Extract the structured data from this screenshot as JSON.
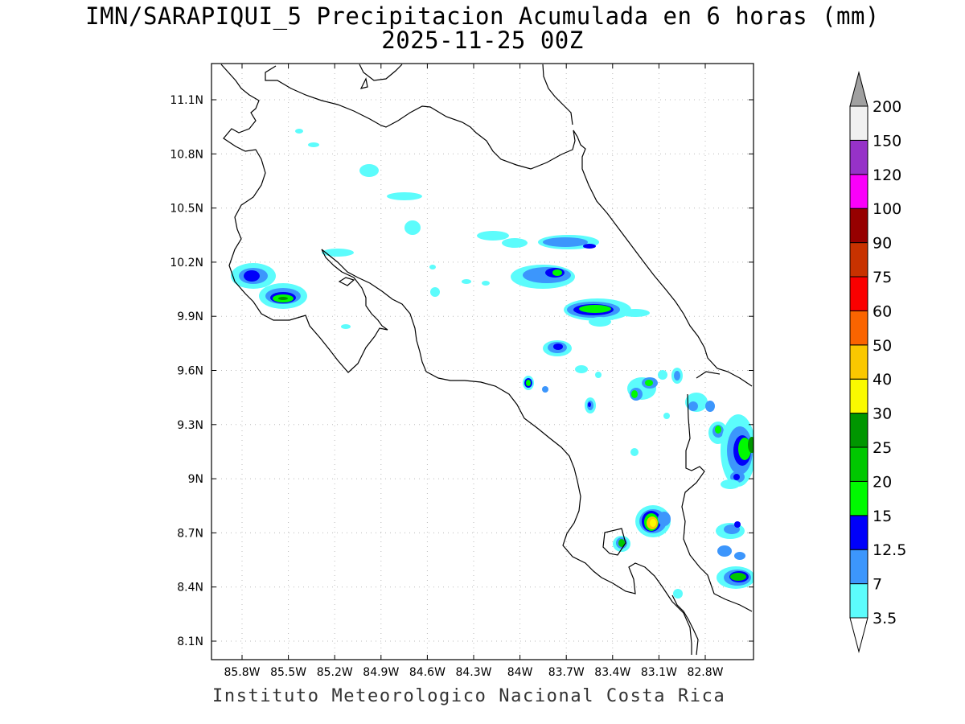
{
  "title": {
    "line1": "IMN/SARAPIQUI_5 Precipitacion Acumulada en 6 horas (mm)",
    "line2": "2025-11-25 00Z"
  },
  "footer": "Instituto Meteorologico Nacional Costa Rica",
  "axes": {
    "x_ticks": [
      "85.8W",
      "85.5W",
      "85.2W",
      "84.9W",
      "84.6W",
      "84.3W",
      "84W",
      "83.7W",
      "83.4W",
      "83.1W",
      "82.8W"
    ],
    "y_ticks": [
      "11.1N",
      "10.8N",
      "10.5N",
      "10.2N",
      "9.9N",
      "9.6N",
      "9.3N",
      "9N",
      "8.7N",
      "8.4N",
      "8.1N"
    ],
    "grid": "dotted"
  },
  "colorbar": {
    "levels": [
      "3.5",
      "7",
      "12.5",
      "15",
      "20",
      "25",
      "30",
      "40",
      "50",
      "60",
      "75",
      "90",
      "100",
      "120",
      "150",
      "200"
    ],
    "colors": [
      "#ffffff",
      "#5cfcfc",
      "#3c96fc",
      "#0000fa",
      "#00fa00",
      "#00c800",
      "#009600",
      "#fafa00",
      "#fac800",
      "#fa6400",
      "#fa0000",
      "#c83200",
      "#960000",
      "#fa00fa",
      "#9632c8",
      "#f0f0f0",
      "#a0a0a0"
    ]
  }
}
